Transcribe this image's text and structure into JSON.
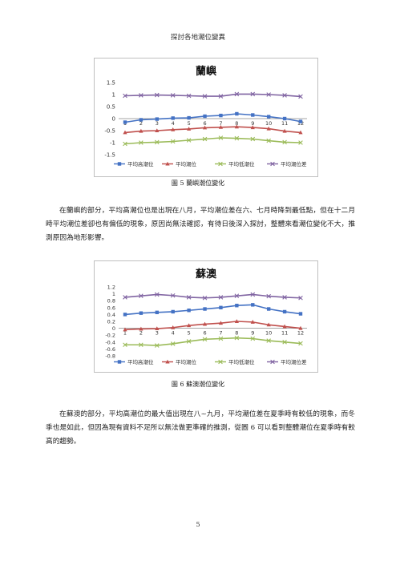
{
  "header": {
    "title": "探討各地潮位變異"
  },
  "figures": [
    {
      "caption": "圖 5  蘭嶼潮位變化",
      "chart_data": {
        "type": "line",
        "title": "蘭嶼",
        "categories": [
          "1",
          "2",
          "3",
          "4",
          "5",
          "6",
          "7",
          "8",
          "9",
          "10",
          "11",
          "12"
        ],
        "yticks": [
          "1.5",
          "1",
          "0.5",
          "0",
          "-0.5",
          "-1",
          "-1.5"
        ],
        "ylim": [
          -1.5,
          1.5
        ],
        "legend_position": "bottom",
        "series": [
          {
            "name": "平均高潮位",
            "color": "#4472c4",
            "marker": "square",
            "values": [
              -0.15,
              -0.05,
              -0.02,
              0.02,
              0.03,
              0.1,
              0.13,
              0.2,
              0.15,
              0.08,
              0.0,
              -0.12
            ]
          },
          {
            "name": "平均潮位",
            "color": "#c0504d",
            "marker": "triangle",
            "values": [
              -0.58,
              -0.52,
              -0.5,
              -0.46,
              -0.43,
              -0.38,
              -0.36,
              -0.34,
              -0.37,
              -0.42,
              -0.52,
              -0.58
            ]
          },
          {
            "name": "平均低潮位",
            "color": "#9bbb59",
            "marker": "x",
            "values": [
              -1.05,
              -1.0,
              -0.98,
              -0.95,
              -0.9,
              -0.85,
              -0.8,
              -0.82,
              -0.85,
              -0.92,
              -0.98,
              -1.0
            ]
          },
          {
            "name": "平均潮位差",
            "color": "#8064a2",
            "marker": "x",
            "values": [
              0.95,
              0.97,
              0.98,
              0.97,
              0.95,
              0.93,
              0.93,
              1.02,
              1.02,
              1.0,
              0.97,
              0.92
            ]
          }
        ]
      }
    },
    {
      "caption": "圖 6  蘇澳潮位變化",
      "chart_data": {
        "type": "line",
        "title": "蘇澳",
        "categories": [
          "1",
          "2",
          "3",
          "4",
          "5",
          "6",
          "7",
          "8",
          "9",
          "10",
          "11",
          "12"
        ],
        "yticks": [
          "1.2",
          "1",
          "0.8",
          "0.6",
          "0.4",
          "0.2",
          "0",
          "-0.2",
          "-0.4",
          "-0.6",
          "-0.8"
        ],
        "ylim": [
          -0.8,
          1.2
        ],
        "legend_position": "bottom",
        "series": [
          {
            "name": "平均高潮位",
            "color": "#4472c4",
            "marker": "square",
            "values": [
              0.4,
              0.44,
              0.46,
              0.48,
              0.52,
              0.56,
              0.6,
              0.66,
              0.68,
              0.56,
              0.48,
              0.42
            ]
          },
          {
            "name": "平均潮位",
            "color": "#c0504d",
            "marker": "triangle",
            "values": [
              -0.04,
              -0.02,
              -0.01,
              0.02,
              0.08,
              0.12,
              0.15,
              0.2,
              0.18,
              0.1,
              0.05,
              0.0
            ]
          },
          {
            "name": "平均低潮位",
            "color": "#9bbb59",
            "marker": "x",
            "values": [
              -0.48,
              -0.48,
              -0.5,
              -0.45,
              -0.38,
              -0.32,
              -0.3,
              -0.28,
              -0.3,
              -0.36,
              -0.4,
              -0.44
            ]
          },
          {
            "name": "平均潮位差",
            "color": "#8064a2",
            "marker": "x",
            "values": [
              0.9,
              0.94,
              0.98,
              0.95,
              0.9,
              0.88,
              0.9,
              0.94,
              0.98,
              0.93,
              0.9,
              0.88
            ]
          }
        ]
      }
    }
  ],
  "paragraphs": [
    "在蘭嶼的部分，平均高潮位也是出現在八月，平均潮位差在六、七月時降到最低點，但在十二月時平均潮位差卻也有偏低的現象，原因尚無法確認，有待日後深入探討，整體來看潮位變化不大，推測原因為地形影響。",
    "在蘇澳的部分，平均高潮位的最大值出現在八~九月，平均潮位差在夏季時有較低的現象，而冬季也是如此，但因為現有資料不足所以無法做更準確的推測，從圖 6 可以看到整體潮位在夏季時有較高的趨勢。"
  ],
  "page_number": "5"
}
